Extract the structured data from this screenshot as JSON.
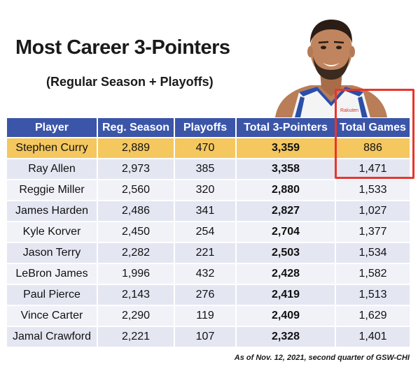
{
  "title": "Most Career 3-Pointers",
  "subtitle": "(Regular Season + Playoffs)",
  "portrait_jersey_text": "Rakuten",
  "footnote": "As of Nov. 12, 2021, second quarter of GSW-CHI",
  "colors": {
    "header_bg": "#3b55a8",
    "highlight_row": "#f4c75f",
    "row_alt_1": "#e4e6f2",
    "row_alt_2": "#f1f2f8",
    "callout_border": "#e8352b"
  },
  "chart_data": {
    "type": "table",
    "columns": [
      "Player",
      "Reg. Season",
      "Playoffs",
      "Total 3-Pointers",
      "Total Games"
    ],
    "rows": [
      {
        "player": "Stephen Curry",
        "reg_season": "2,889",
        "playoffs": "470",
        "total": "3,359",
        "games": "886"
      },
      {
        "player": "Ray Allen",
        "reg_season": "2,973",
        "playoffs": "385",
        "total": "3,358",
        "games": "1,471"
      },
      {
        "player": "Reggie Miller",
        "reg_season": "2,560",
        "playoffs": "320",
        "total": "2,880",
        "games": "1,533"
      },
      {
        "player": "James Harden",
        "reg_season": "2,486",
        "playoffs": "341",
        "total": "2,827",
        "games": "1,027"
      },
      {
        "player": "Kyle Korver",
        "reg_season": "2,450",
        "playoffs": "254",
        "total": "2,704",
        "games": "1,377"
      },
      {
        "player": "Jason Terry",
        "reg_season": "2,282",
        "playoffs": "221",
        "total": "2,503",
        "games": "1,534"
      },
      {
        "player": "LeBron James",
        "reg_season": "1,996",
        "playoffs": "432",
        "total": "2,428",
        "games": "1,582"
      },
      {
        "player": "Paul Pierce",
        "reg_season": "2,143",
        "playoffs": "276",
        "total": "2,419",
        "games": "1,513"
      },
      {
        "player": "Vince Carter",
        "reg_season": "2,290",
        "playoffs": "119",
        "total": "2,409",
        "games": "1,629"
      },
      {
        "player": "Jamal Crawford",
        "reg_season": "2,221",
        "playoffs": "107",
        "total": "2,328",
        "games": "1,401"
      }
    ],
    "highlighted_row": "Stephen Curry",
    "callout_column": "Total Games"
  }
}
